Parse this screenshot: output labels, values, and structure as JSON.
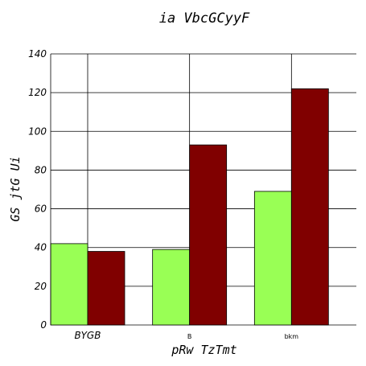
{
  "chart_data": {
    "type": "bar",
    "title": "ia VbcGCyyF",
    "xlabel": "pRw TzTmt",
    "ylabel": "GS jtG Ui",
    "categories": [
      "BYGB",
      "B",
      "bkm"
    ],
    "series": [
      {
        "values": [
          42,
          39,
          69
        ],
        "color": "#99ff55"
      },
      {
        "values": [
          38,
          93,
          122
        ],
        "color": "#800000"
      }
    ],
    "ylim": [
      0,
      140
    ],
    "yticks": [
      0,
      20,
      40,
      60,
      80,
      100,
      120,
      140
    ],
    "grid": true
  }
}
